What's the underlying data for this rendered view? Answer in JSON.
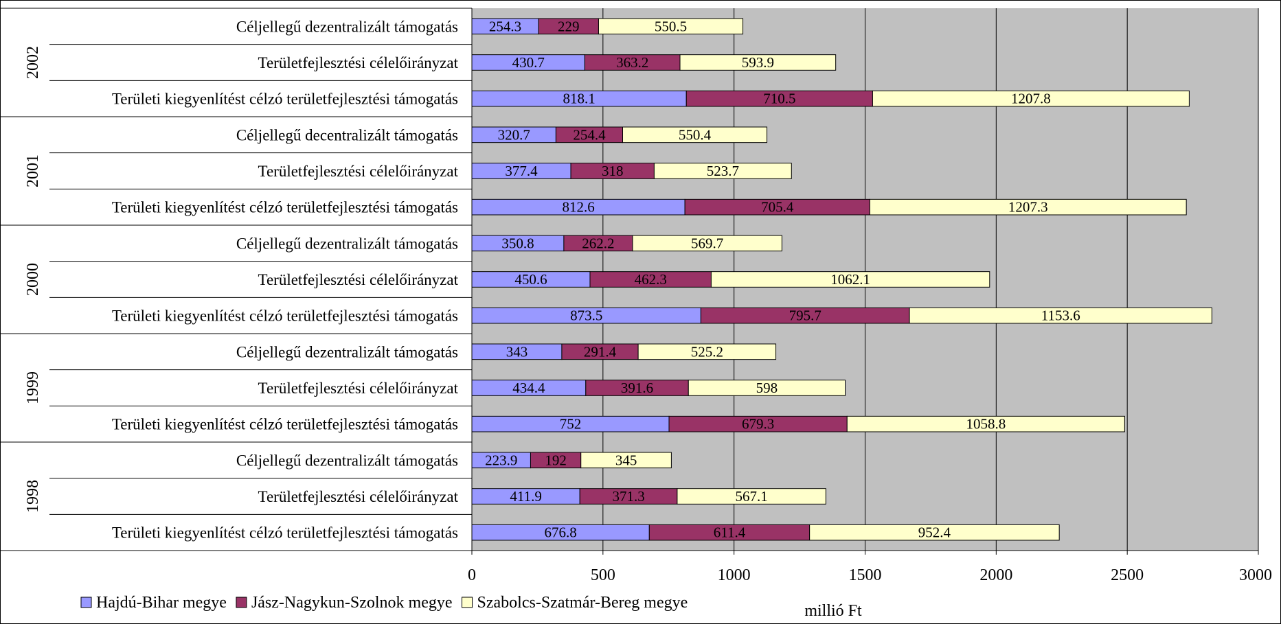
{
  "chart_data": {
    "type": "bar",
    "orientation": "horizontal",
    "stacked": true,
    "xlabel": "millió Ft",
    "xlim": [
      0,
      3000
    ],
    "xticks": [
      0,
      500,
      1000,
      1500,
      2000,
      2500,
      3000
    ],
    "grid": true,
    "legend_position": "bottom-left",
    "groups": [
      {
        "year": "2002",
        "categories": [
          "Céljellegű dezentralizált támogatás",
          "Területfejlesztési célelőirányzat",
          "Területi kiegyenlítést célzó területfejlesztési támogatás"
        ],
        "values": [
          [
            254.3,
            229,
            550.5
          ],
          [
            430.7,
            363.2,
            593.9
          ],
          [
            818.1,
            710.5,
            1207.8
          ]
        ]
      },
      {
        "year": "2001",
        "categories": [
          "Céljellegű decentralizált támogatás",
          "Területfejlesztési célelőirányzat",
          "Területi kiegyenlítést célzó területfejlesztési támogatás"
        ],
        "values": [
          [
            320.7,
            254.4,
            550.4
          ],
          [
            377.4,
            318,
            523.7
          ],
          [
            812.6,
            705.4,
            1207.3
          ]
        ]
      },
      {
        "year": "2000",
        "categories": [
          "Céljellegű dezentralizált támogatás",
          "Területfejlesztési célelőirányzat",
          "Területi kiegyenlítést célzó területfejlesztési támogatás"
        ],
        "values": [
          [
            350.8,
            262.2,
            569.7
          ],
          [
            450.6,
            462.3,
            1062.1
          ],
          [
            873.5,
            795.7,
            1153.6
          ]
        ]
      },
      {
        "year": "1999",
        "categories": [
          "Céljellegű dezentralizált támogatás",
          "Területfejlesztési célelőirányzat",
          "Területi kiegyenlítést célzó területfejlesztési támogatás"
        ],
        "values": [
          [
            343,
            291.4,
            525.2
          ],
          [
            434.4,
            391.6,
            598
          ],
          [
            752,
            679.3,
            1058.8
          ]
        ]
      },
      {
        "year": "1998",
        "categories": [
          "Céljellegű dezentralizált támogatás",
          "Területfejlesztési célelőirányzat",
          "Területi kiegyenlítést célzó területfejlesztési támogatás"
        ],
        "values": [
          [
            223.9,
            192,
            345
          ],
          [
            411.9,
            371.3,
            567.1
          ],
          [
            676.8,
            611.4,
            952.4
          ]
        ]
      }
    ],
    "series": [
      {
        "name": "Hajdú-Bihar megye",
        "color": "#9999ff"
      },
      {
        "name": "Jász-Nagykun-Szolnok megye",
        "color": "#993366"
      },
      {
        "name": "Szabolcs-Szatmár-Bereg megye",
        "color": "#ffffcc"
      }
    ],
    "plot_background": "#c0c0c0"
  }
}
